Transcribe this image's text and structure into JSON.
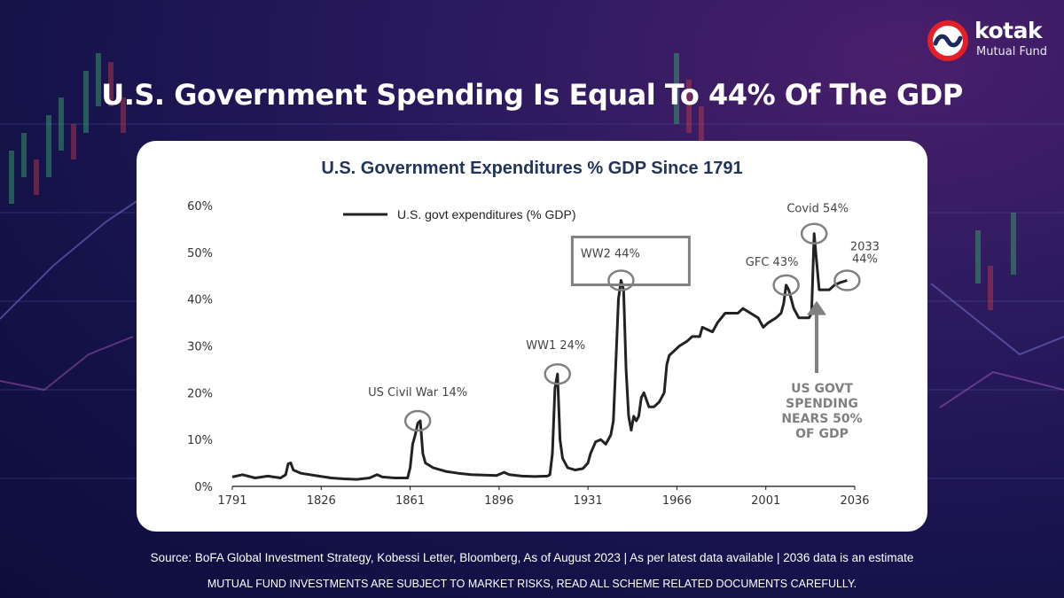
{
  "brand": {
    "name": "kotak",
    "subtitle": "Mutual Fund"
  },
  "slide": {
    "title": "U.S. Government Spending Is Equal To 44% Of The GDP",
    "source": "Source: BoFA Global Investment Strategy, Kobessi Letter,  Bloomberg, As of August 2023 | As per latest data available | 2036 data is an estimate",
    "disclaimer": "MUTUAL FUND INVESTMENTS ARE SUBJECT TO MARKET RISKS, READ ALL SCHEME RELATED DOCUMENTS CAREFULLY."
  },
  "colors": {
    "brand_red": "#e41f26",
    "title_navy": "#22345c",
    "line": "#222222",
    "annotation_gray": "#808080"
  },
  "chart_data": {
    "type": "line",
    "title": "U.S. Government Expenditures % GDP Since 1791",
    "xlabel": "",
    "ylabel": "",
    "xlim": [
      1791,
      2036
    ],
    "ylim": [
      0,
      60
    ],
    "x_ticks": [
      1791,
      1826,
      1861,
      1896,
      1931,
      1966,
      2001,
      2036
    ],
    "y_ticks": [
      0,
      10,
      20,
      30,
      40,
      50,
      60
    ],
    "y_tick_labels": [
      "0%",
      "10%",
      "20%",
      "30%",
      "40%",
      "50%",
      "60%"
    ],
    "legend": {
      "label": "U.S. govt expenditures (% GDP)",
      "position": "top-left"
    },
    "series": [
      {
        "name": "U.S. govt expenditures (% GDP)",
        "points": [
          [
            1791,
            2
          ],
          [
            1795,
            2.5
          ],
          [
            1800,
            1.8
          ],
          [
            1805,
            2.2
          ],
          [
            1810,
            1.8
          ],
          [
            1812,
            2.5
          ],
          [
            1813,
            4.8
          ],
          [
            1814,
            5
          ],
          [
            1815,
            3.5
          ],
          [
            1818,
            2.8
          ],
          [
            1825,
            2.2
          ],
          [
            1830,
            1.8
          ],
          [
            1835,
            1.6
          ],
          [
            1840,
            1.5
          ],
          [
            1845,
            1.8
          ],
          [
            1848,
            2.5
          ],
          [
            1850,
            2
          ],
          [
            1855,
            1.8
          ],
          [
            1860,
            1.8
          ],
          [
            1861,
            4
          ],
          [
            1862,
            9
          ],
          [
            1863,
            11
          ],
          [
            1864,
            13.5
          ],
          [
            1865,
            14
          ],
          [
            1866,
            7
          ],
          [
            1867,
            5
          ],
          [
            1870,
            4
          ],
          [
            1875,
            3.2
          ],
          [
            1880,
            2.8
          ],
          [
            1885,
            2.5
          ],
          [
            1890,
            2.4
          ],
          [
            1895,
            2.3
          ],
          [
            1898,
            3
          ],
          [
            1900,
            2.5
          ],
          [
            1905,
            2.2
          ],
          [
            1910,
            2.1
          ],
          [
            1915,
            2.2
          ],
          [
            1916,
            2.5
          ],
          [
            1917,
            7
          ],
          [
            1918,
            21
          ],
          [
            1919,
            24
          ],
          [
            1920,
            10
          ],
          [
            1921,
            6
          ],
          [
            1923,
            4
          ],
          [
            1926,
            3.5
          ],
          [
            1929,
            3.8
          ],
          [
            1931,
            5
          ],
          [
            1932,
            7
          ],
          [
            1934,
            9.5
          ],
          [
            1936,
            10
          ],
          [
            1938,
            9
          ],
          [
            1940,
            11
          ],
          [
            1941,
            14
          ],
          [
            1942,
            27
          ],
          [
            1943,
            40
          ],
          [
            1944,
            44
          ],
          [
            1945,
            42
          ],
          [
            1946,
            25
          ],
          [
            1947,
            15
          ],
          [
            1948,
            12
          ],
          [
            1949,
            15
          ],
          [
            1950,
            14
          ],
          [
            1951,
            15
          ],
          [
            1952,
            19
          ],
          [
            1953,
            20
          ],
          [
            1955,
            17
          ],
          [
            1957,
            17
          ],
          [
            1959,
            18
          ],
          [
            1961,
            20
          ],
          [
            1962,
            26
          ],
          [
            1963,
            28
          ],
          [
            1965,
            29
          ],
          [
            1967,
            30
          ],
          [
            1970,
            31
          ],
          [
            1972,
            32
          ],
          [
            1975,
            32
          ],
          [
            1976,
            34
          ],
          [
            1980,
            33
          ],
          [
            1982,
            35
          ],
          [
            1985,
            37
          ],
          [
            1988,
            37
          ],
          [
            1990,
            37
          ],
          [
            1992,
            38
          ],
          [
            1995,
            37
          ],
          [
            1998,
            36
          ],
          [
            2000,
            34
          ],
          [
            2002,
            35
          ],
          [
            2005,
            36
          ],
          [
            2007,
            37
          ],
          [
            2008,
            39
          ],
          [
            2009,
            43
          ],
          [
            2010,
            42
          ],
          [
            2011,
            40
          ],
          [
            2012,
            38
          ],
          [
            2014,
            36
          ],
          [
            2016,
            36
          ],
          [
            2018,
            36
          ],
          [
            2019,
            37
          ],
          [
            2020,
            54
          ],
          [
            2021,
            48
          ],
          [
            2022,
            42
          ],
          [
            2024,
            42
          ],
          [
            2026,
            42
          ],
          [
            2028,
            43
          ],
          [
            2030,
            43.5
          ],
          [
            2033,
            44
          ]
        ]
      }
    ],
    "annotations": [
      {
        "label": "US Civil War 14%",
        "x": 1864,
        "y": 14
      },
      {
        "label": "WW1 24%",
        "x": 1919,
        "y": 24
      },
      {
        "label": "WW2 44%",
        "x": 1944,
        "y": 44,
        "boxed": true
      },
      {
        "label": "GFC 43%",
        "x": 2009,
        "y": 43
      },
      {
        "label": "Covid 54%",
        "x": 2020,
        "y": 54
      },
      {
        "label_lines": [
          "2033",
          "44%"
        ],
        "x": 2033,
        "y": 44
      }
    ],
    "callout": {
      "text_lines": [
        "US GOVT",
        "SPENDING",
        "NEARS 50%",
        "OF GDP"
      ],
      "arrow_x": 2021,
      "arrow_to_y": 40
    }
  }
}
